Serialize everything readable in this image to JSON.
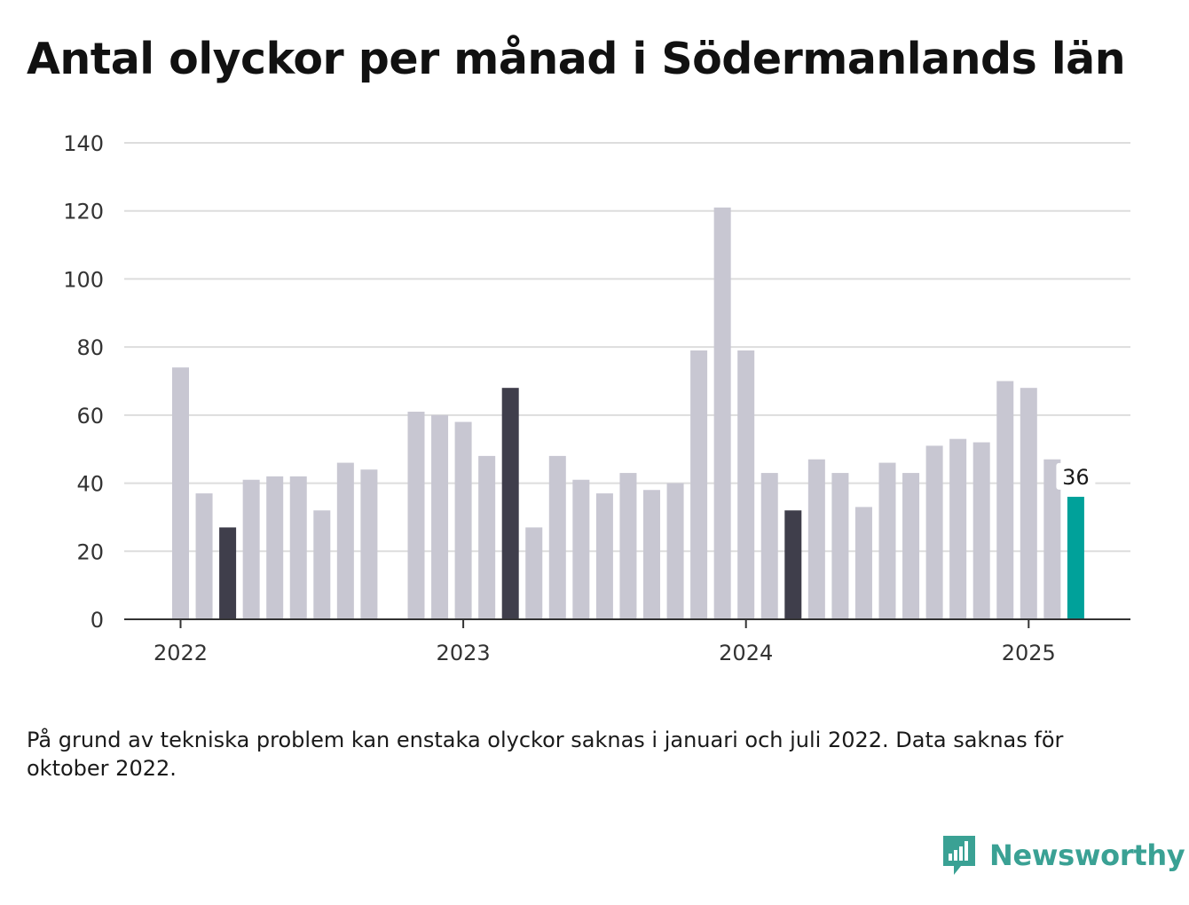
{
  "title": "Antal olyckor per månad i Södermanlands län",
  "footnote": "På grund av tekniska problem kan enstaka olyckor saknas i januari och juli 2022. Data saknas för oktober 2022.",
  "brand": {
    "name": "Newsworthy",
    "icon": "newsworthy-logo-icon",
    "color": "#3aa194"
  },
  "colors": {
    "default": "#c8c7d2",
    "highlight": "#3f3e4b",
    "latest": "#00a19a",
    "grid": "#dddddd",
    "axis": "#333333"
  },
  "chart_data": {
    "type": "bar",
    "title": "Antal olyckor per månad i Södermanlands län",
    "xlabel": "",
    "ylabel": "",
    "ylim": [
      0,
      140
    ],
    "yticks": [
      0,
      20,
      40,
      60,
      80,
      100,
      120,
      140
    ],
    "xtick_labels": [
      "2022",
      "2023",
      "2024",
      "2025"
    ],
    "grid": "horizontal",
    "categories": [
      "2022-01",
      "2022-02",
      "2022-03",
      "2022-04",
      "2022-05",
      "2022-06",
      "2022-07",
      "2022-08",
      "2022-09",
      "2022-10",
      "2022-11",
      "2022-12",
      "2023-01",
      "2023-02",
      "2023-03",
      "2023-04",
      "2023-05",
      "2023-06",
      "2023-07",
      "2023-08",
      "2023-09",
      "2023-10",
      "2023-11",
      "2023-12",
      "2024-01",
      "2024-02",
      "2024-03",
      "2024-04",
      "2024-05",
      "2024-06",
      "2024-07",
      "2024-08",
      "2024-09",
      "2024-10",
      "2024-11",
      "2024-12",
      "2025-01",
      "2025-02",
      "2025-03"
    ],
    "values": [
      74,
      37,
      27,
      41,
      42,
      42,
      32,
      46,
      44,
      null,
      61,
      60,
      58,
      48,
      68,
      27,
      48,
      41,
      37,
      43,
      38,
      40,
      79,
      121,
      79,
      43,
      32,
      47,
      43,
      33,
      46,
      43,
      51,
      53,
      52,
      70,
      68,
      47,
      36
    ],
    "highlighted": [
      "2022-03",
      "2023-03",
      "2024-03"
    ],
    "latest": "2025-03",
    "data_labels": [
      {
        "category": "2025-03",
        "text": "36"
      }
    ]
  }
}
